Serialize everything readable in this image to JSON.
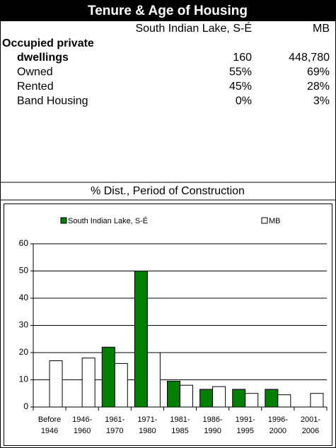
{
  "header": {
    "title": "Tenure & Age of Housing"
  },
  "table": {
    "columns": [
      "South Indian Lake, S-É",
      "MB"
    ],
    "heading": "Occupied private",
    "rows": [
      [
        "dwellings",
        "160",
        "448,780"
      ],
      [
        "Owned",
        "55%",
        "69%"
      ],
      [
        "Rented",
        "45%",
        "28%"
      ],
      [
        "Band Housing",
        "0%",
        "3%"
      ]
    ]
  },
  "chart_data": {
    "type": "bar",
    "title": "% Dist., Period of Construction",
    "categories": [
      [
        "Before",
        "1946"
      ],
      [
        "1946-",
        "1960"
      ],
      [
        "1961-",
        "1970"
      ],
      [
        "1971-",
        "1980"
      ],
      [
        "1981-",
        "1985"
      ],
      [
        "1986-",
        "1990"
      ],
      [
        "1991-",
        "1995"
      ],
      [
        "1996-",
        "2000"
      ],
      [
        "2001-",
        "2006"
      ]
    ],
    "series": [
      {
        "name": "South Indian Lake, S-É",
        "color": "#008000",
        "values": [
          0,
          0,
          22,
          50,
          9.5,
          6.5,
          6.5,
          6.5,
          0
        ]
      },
      {
        "name": "MB",
        "color": "#ffffff",
        "values": [
          17,
          18,
          16,
          20,
          8,
          7.5,
          5,
          4.5,
          5
        ]
      }
    ],
    "ylim": [
      0,
      60
    ],
    "yticks": [
      0,
      10,
      20,
      30,
      40,
      50,
      60
    ],
    "grid": true,
    "legend": "top"
  }
}
